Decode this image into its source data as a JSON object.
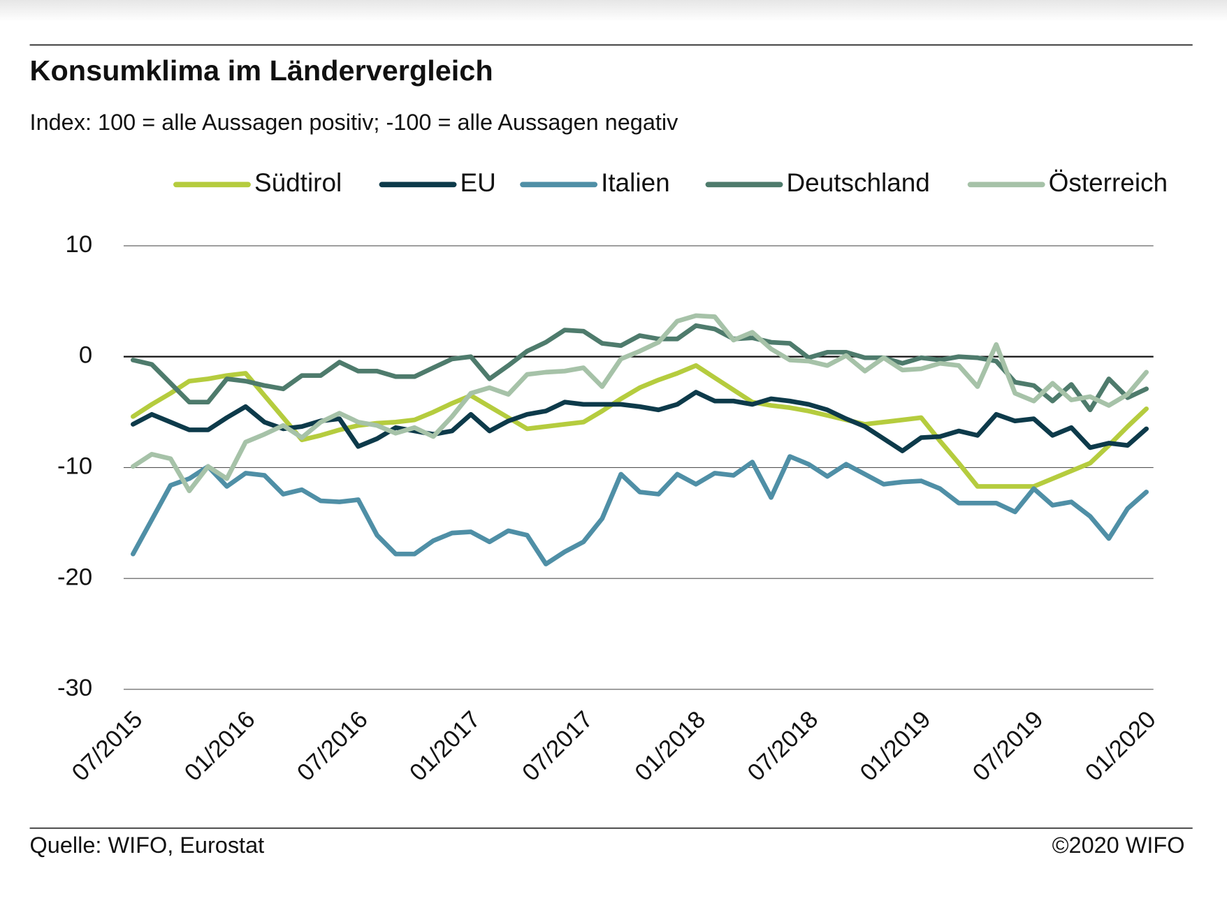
{
  "chart_data": {
    "type": "line",
    "title": "Konsumklima im Ländervergleich",
    "subtitle": "Index: 100 = alle Aussagen positiv; -100 =  alle Aussagen negativ",
    "source": "Quelle: WIFO, Eurostat",
    "copyright": "©2020 WIFO",
    "categories": [
      "07/2015",
      null,
      null,
      null,
      null,
      null,
      "01/2016",
      null,
      null,
      null,
      null,
      null,
      "07/2016",
      null,
      null,
      null,
      null,
      null,
      "01/2017",
      null,
      null,
      null,
      null,
      null,
      "07/2017",
      null,
      null,
      null,
      null,
      null,
      "01/2018",
      null,
      null,
      null,
      null,
      null,
      "07/2018",
      null,
      null,
      null,
      null,
      null,
      "01/2019",
      null,
      null,
      null,
      null,
      null,
      "07/2019",
      null,
      null,
      null,
      null,
      null,
      "01/2020"
    ],
    "ylim": [
      -30,
      10
    ],
    "yticks": [
      -30,
      -20,
      -10,
      0,
      10
    ],
    "grid": true,
    "legend": "top",
    "series": [
      {
        "name": "Südtirol",
        "color": "#b5cc3e",
        "values": [
          -5.4,
          -4.3,
          -3.3,
          -2.2,
          -2.0,
          -1.7,
          -1.5,
          -3.5,
          -5.5,
          -7.5,
          -7.1,
          -6.6,
          -6.2,
          -6.0,
          -5.9,
          -5.7,
          -5.0,
          -4.2,
          -3.5,
          -4.5,
          -5.5,
          -6.5,
          -6.3,
          -6.1,
          -5.9,
          -4.9,
          -3.8,
          -2.8,
          -2.1,
          -1.5,
          -0.8,
          -1.9,
          -3.0,
          -4.1,
          -4.4,
          -4.6,
          -4.9,
          -5.3,
          -5.7,
          -6.1,
          -5.9,
          -5.7,
          -5.5,
          -7.6,
          -9.6,
          -11.7,
          -11.7,
          -11.7,
          -11.7,
          -11.0,
          -10.3,
          -9.6,
          -8.0,
          -6.3,
          -4.7
        ]
      },
      {
        "name": "EU",
        "color": "#0d3a4a",
        "values": [
          -6.1,
          -5.2,
          -5.9,
          -6.6,
          -6.6,
          -5.5,
          -4.5,
          -5.9,
          -6.5,
          -6.3,
          -5.8,
          -5.6,
          -8.1,
          -7.4,
          -6.4,
          -6.7,
          -7.0,
          -6.7,
          -5.2,
          -6.7,
          -5.8,
          -5.2,
          -4.9,
          -4.1,
          -4.3,
          -4.3,
          -4.3,
          -4.5,
          -4.8,
          -4.3,
          -3.2,
          -4.0,
          -4.0,
          -4.3,
          -3.8,
          -4.0,
          -4.3,
          -4.8,
          -5.6,
          -6.3,
          -7.4,
          -8.5,
          -7.3,
          -7.2,
          -6.7,
          -7.1,
          -5.2,
          -5.8,
          -5.6,
          -7.1,
          -6.4,
          -8.2,
          -7.8,
          -8.0,
          -6.5
        ]
      },
      {
        "name": "Italien",
        "color": "#4f8fa6",
        "values": [
          -17.8,
          -14.7,
          -11.6,
          -11.0,
          -9.9,
          -11.7,
          -10.5,
          -10.7,
          -12.4,
          -12.0,
          -13.0,
          -13.1,
          -12.9,
          -16.1,
          -17.8,
          -17.8,
          -16.6,
          -15.9,
          -15.8,
          -16.7,
          -15.7,
          -16.1,
          -18.7,
          -17.6,
          -16.7,
          -14.6,
          -10.6,
          -12.2,
          -12.4,
          -10.6,
          -11.5,
          -10.5,
          -10.7,
          -9.5,
          -12.7,
          -9.0,
          -9.7,
          -10.8,
          -9.7,
          -10.6,
          -11.5,
          -11.3,
          -11.2,
          -11.9,
          -13.2,
          -13.2,
          -13.2,
          -14.0,
          -11.9,
          -13.4,
          -13.1,
          -14.4,
          -16.4,
          -13.7,
          -12.2
        ]
      },
      {
        "name": "Deutschland",
        "color": "#4e7b6c",
        "values": [
          -0.3,
          -0.7,
          -2.4,
          -4.1,
          -4.1,
          -2.0,
          -2.2,
          -2.6,
          -2.9,
          -1.7,
          -1.7,
          -0.5,
          -1.3,
          -1.3,
          -1.8,
          -1.8,
          -1.0,
          -0.2,
          0.0,
          -2.0,
          -0.8,
          0.5,
          1.3,
          2.4,
          2.3,
          1.2,
          1.0,
          1.9,
          1.6,
          1.6,
          2.8,
          2.5,
          1.6,
          1.7,
          1.3,
          1.2,
          -0.1,
          0.4,
          0.4,
          -0.1,
          -0.1,
          -0.6,
          -0.1,
          -0.3,
          0.0,
          -0.1,
          -0.4,
          -2.3,
          -2.6,
          -4.0,
          -2.5,
          -4.8,
          -2.0,
          -3.7,
          -2.9
        ]
      },
      {
        "name": "Österreich",
        "color": "#a6c2a8",
        "values": [
          -9.9,
          -8.8,
          -9.2,
          -12.1,
          -9.9,
          -11.0,
          -7.7,
          -7.0,
          -6.2,
          -7.3,
          -5.9,
          -5.1,
          -5.9,
          -6.2,
          -6.9,
          -6.4,
          -7.2,
          -5.4,
          -3.3,
          -2.8,
          -3.4,
          -1.6,
          -1.4,
          -1.3,
          -1.0,
          -2.7,
          -0.2,
          0.5,
          1.3,
          3.2,
          3.7,
          3.6,
          1.5,
          2.2,
          0.7,
          -0.3,
          -0.4,
          -0.8,
          0.1,
          -1.3,
          -0.1,
          -1.2,
          -1.1,
          -0.6,
          -0.8,
          -2.7,
          1.1,
          -3.3,
          -4.0,
          -2.4,
          -3.9,
          -3.6,
          -4.4,
          -3.4,
          -1.4
        ]
      }
    ]
  }
}
